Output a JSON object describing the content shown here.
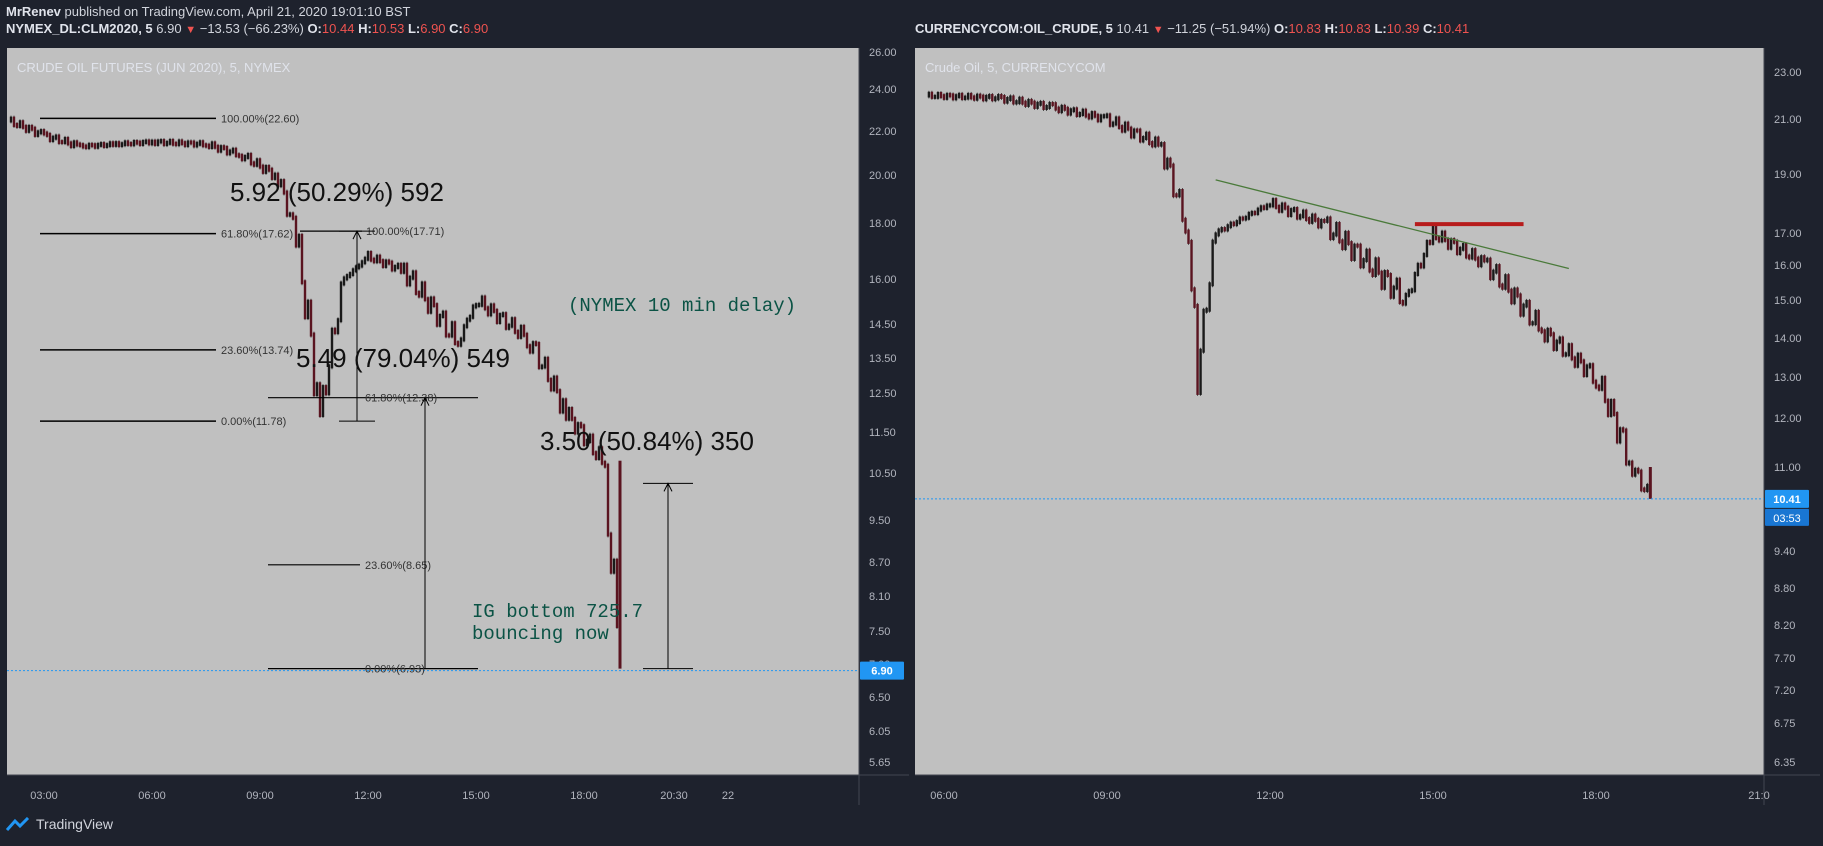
{
  "publish_line": {
    "author": "MrRenev",
    "text": "published on TradingView.com, April 21, 2020 19:01:10 BST"
  },
  "left": {
    "symbol": "NYMEX_DL:CLM2020, 5",
    "price": "6.90",
    "change": "−13.53 (−66.23%)",
    "ohlc": {
      "O": "10.44",
      "H": "10.53",
      "L": "6.90",
      "C": "6.90"
    },
    "title": "CRUDE OIL FUTURES (JUN 2020), 5, NYMEX",
    "price_tag": "6.90"
  },
  "right": {
    "symbol": "CURRENCYCOM:OIL_CRUDE, 5",
    "price": "10.41",
    "change": "−11.25 (−51.94%)",
    "ohlc": {
      "O": "10.83",
      "H": "10.83",
      "L": "10.39",
      "C": "10.41"
    },
    "title": "Crude Oil, 5, CURRENCYCOM",
    "price_tag": "10.41",
    "countdown": "03:53"
  },
  "footer": {
    "brand": "TradingView"
  },
  "colors": {
    "bg": "#1e222d",
    "plot": "#c0c0c0",
    "accent": "#2196f3",
    "down": "#ef5350",
    "annotation": "#0b5345",
    "trendline": "#4a7a3a",
    "resistance": "#b71c1c"
  },
  "chart_data": [
    {
      "type": "candlestick",
      "title": "CRUDE OIL FUTURES (JUN 2020), 5, NYMEX",
      "x_ticks": [
        "03:00",
        "06:00",
        "09:00",
        "12:00",
        "15:00",
        "18:00",
        "20:30",
        "22"
      ],
      "y_ticks": [
        "26.00",
        "24.00",
        "22.00",
        "20.00",
        "18.00",
        "16.00",
        "14.50",
        "13.50",
        "12.50",
        "11.50",
        "10.50",
        "9.50",
        "8.70",
        "8.10",
        "7.50",
        "7.00",
        "6.50",
        "6.05",
        "5.65"
      ],
      "path_keypoints": [
        {
          "x": "02:00",
          "y": 22.5
        },
        {
          "x": "03:00",
          "y": 21.8
        },
        {
          "x": "04:00",
          "y": 21.3
        },
        {
          "x": "05:00",
          "y": 21.4
        },
        {
          "x": "06:00",
          "y": 21.5
        },
        {
          "x": "07:30",
          "y": 21.4
        },
        {
          "x": "08:30",
          "y": 20.9
        },
        {
          "x": "09:30",
          "y": 19.9
        },
        {
          "x": "10:00",
          "y": 17.5
        },
        {
          "x": "10:40",
          "y": 11.8
        },
        {
          "x": "11:20",
          "y": 16.0
        },
        {
          "x": "12:00",
          "y": 16.8
        },
        {
          "x": "13:00",
          "y": 16.3
        },
        {
          "x": "14:30",
          "y": 13.9
        },
        {
          "x": "15:00",
          "y": 15.3
        },
        {
          "x": "16:30",
          "y": 14.0
        },
        {
          "x": "17:30",
          "y": 12.0
        },
        {
          "x": "18:30",
          "y": 10.8
        },
        {
          "x": "19:00",
          "y": 6.93
        }
      ],
      "fib_retracements": [
        {
          "levels": [
            {
              "label": "100.00%(22.60)",
              "y": 22.6
            },
            {
              "label": "61.80%(17.62)",
              "y": 17.62
            },
            {
              "label": "23.60%(13.74)",
              "y": 13.74
            },
            {
              "label": "0.00%(11.78)",
              "y": 11.78
            }
          ]
        },
        {
          "levels": [
            {
              "label": "100.00%(17.71)",
              "y": 17.71
            },
            {
              "label": "61.80%(12.38)",
              "y": 12.38
            },
            {
              "label": "23.60%(8.65)",
              "y": 8.65
            },
            {
              "label": "0.00%(6.93)",
              "y": 6.93
            }
          ]
        }
      ],
      "measurements": [
        "5.92 (50.29%) 592",
        "5.49 (79.04%) 549",
        "3.50 (50.84%) 350"
      ],
      "annotations": [
        "(NYMEX 10 min delay)",
        "IG bottom 725.7",
        "bouncing now"
      ],
      "last_price": 6.9
    },
    {
      "type": "candlestick",
      "title": "Crude Oil, 5, CURRENCYCOM",
      "x_ticks": [
        "06:00",
        "09:00",
        "12:00",
        "15:00",
        "18:00",
        "21:0"
      ],
      "y_ticks": [
        "23.00",
        "21.00",
        "19.00",
        "17.00",
        "16.00",
        "15.00",
        "14.00",
        "13.00",
        "12.00",
        "11.00",
        "10.00",
        "9.40",
        "8.80",
        "8.20",
        "7.70",
        "7.20",
        "6.75",
        "6.35"
      ],
      "path_keypoints": [
        {
          "x": "05:40",
          "y": 22.0
        },
        {
          "x": "07:00",
          "y": 21.9
        },
        {
          "x": "08:00",
          "y": 21.5
        },
        {
          "x": "09:00",
          "y": 21.0
        },
        {
          "x": "10:00",
          "y": 20.0
        },
        {
          "x": "10:30",
          "y": 17.0
        },
        {
          "x": "10:40",
          "y": 13.0
        },
        {
          "x": "11:00",
          "y": 17.0
        },
        {
          "x": "12:00",
          "y": 18.0
        },
        {
          "x": "13:00",
          "y": 17.3
        },
        {
          "x": "14:30",
          "y": 15.0
        },
        {
          "x": "15:00",
          "y": 17.0
        },
        {
          "x": "16:00",
          "y": 16.0
        },
        {
          "x": "17:00",
          "y": 14.2
        },
        {
          "x": "18:00",
          "y": 13.0
        },
        {
          "x": "18:40",
          "y": 11.0
        },
        {
          "x": "19:00",
          "y": 10.41
        }
      ],
      "trendline": {
        "from": {
          "x": "11:00",
          "y": 18.8
        },
        "to": {
          "x": "17:30",
          "y": 15.9
        }
      },
      "resistance": {
        "from": {
          "x": "14:40",
          "y": 17.3
        },
        "to": {
          "x": "16:40",
          "y": 17.3
        }
      },
      "last_price": 10.41
    }
  ]
}
